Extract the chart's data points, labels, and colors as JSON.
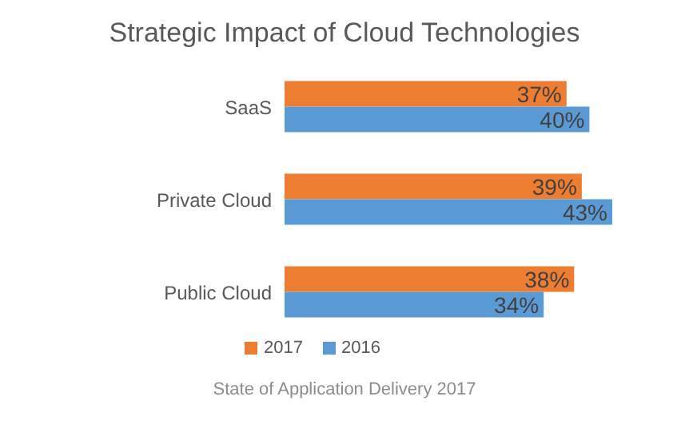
{
  "chart_data": {
    "type": "bar",
    "orientation": "horizontal",
    "title": "Strategic Impact of Cloud Technologies",
    "categories": [
      "SaaS",
      "Private Cloud",
      "Public Cloud"
    ],
    "series": [
      {
        "name": "2017",
        "color": "#ed7d31",
        "values": [
          37,
          39,
          38
        ],
        "value_labels": [
          "37%",
          "39%",
          "38%"
        ]
      },
      {
        "name": "2016",
        "color": "#5b9bd5",
        "values": [
          40,
          43,
          34
        ],
        "value_labels": [
          "40%",
          "43%",
          "34%"
        ]
      }
    ],
    "tick_labels": "y",
    "grid": false,
    "legend": "bottom",
    "annotations": [
      "State of Application Delivery 2017"
    ]
  }
}
